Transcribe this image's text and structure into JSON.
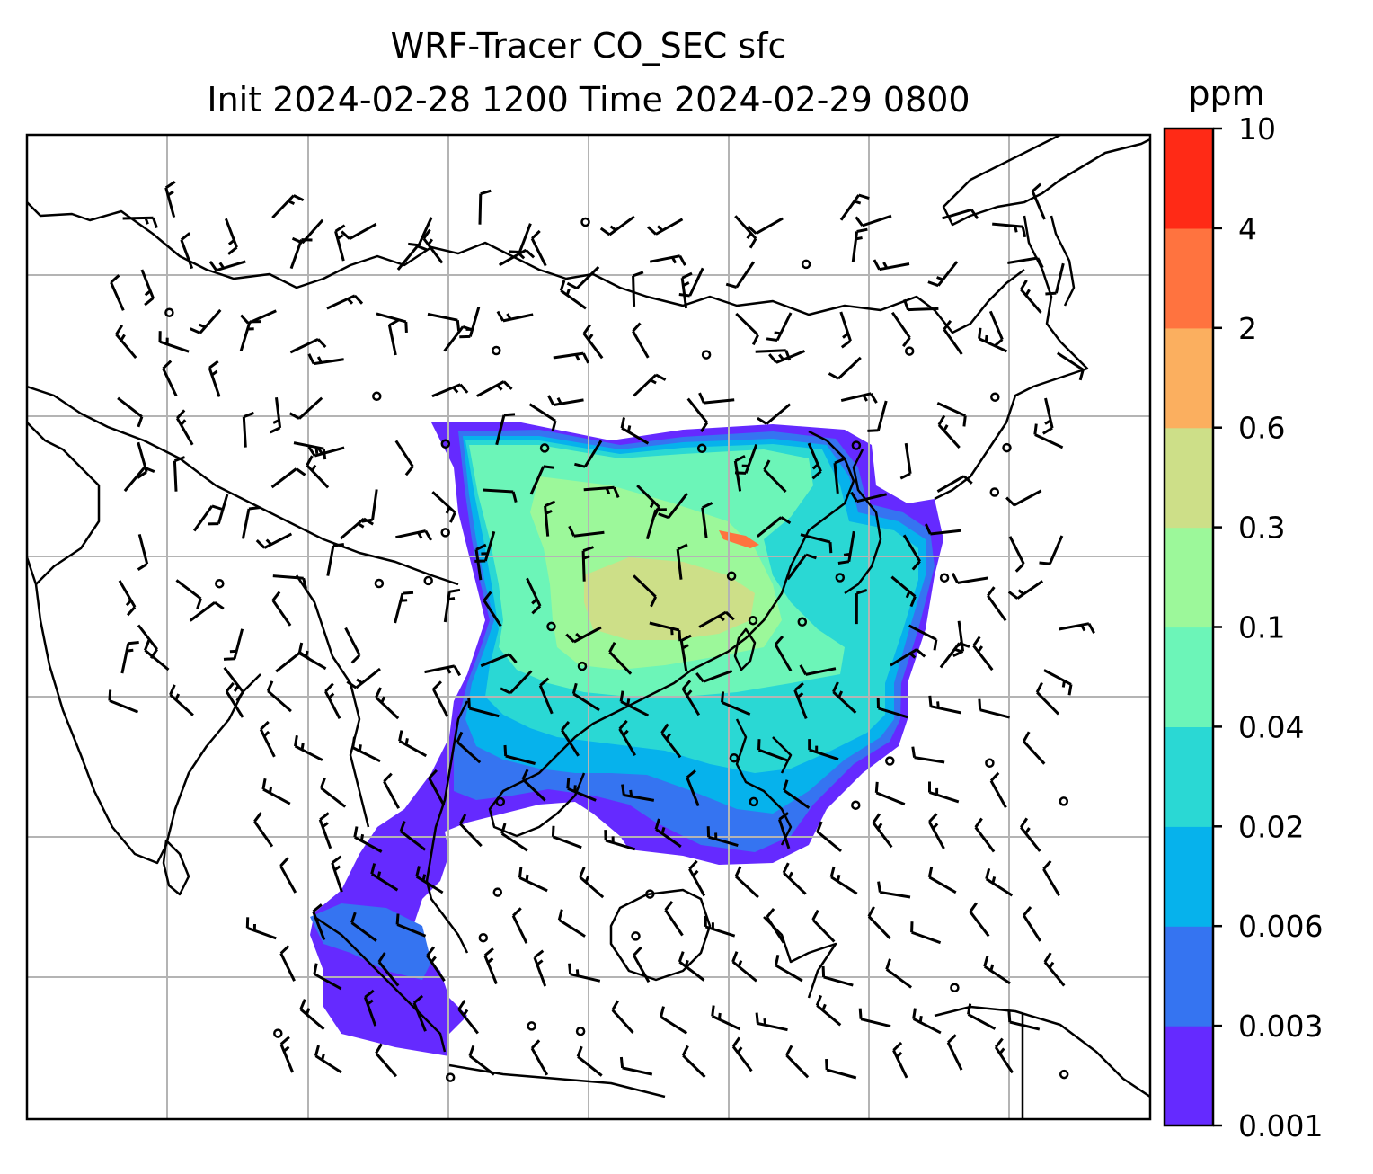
{
  "title": {
    "line1": "WRF-Tracer CO_SEC sfc",
    "line2": "Init 2024-02-28 1200 Time 2024-02-29 0800"
  },
  "colorbar": {
    "units": "ppm",
    "levels": [
      "0.001",
      "0.003",
      "0.006",
      "0.02",
      "0.04",
      "0.1",
      "0.3",
      "0.6",
      "2",
      "4",
      "10"
    ],
    "colors": [
      "#652aff",
      "#3574f1",
      "#06b2ec",
      "#2ad8d4",
      "#6cf5b8",
      "#9cf89a",
      "#cddf88",
      "#fbaf5f",
      "#ff733f",
      "#ff2a16"
    ]
  },
  "map": {
    "background": "#ffffff",
    "gridline_color": "#b4b4b4",
    "coast_color": "#000000"
  }
}
